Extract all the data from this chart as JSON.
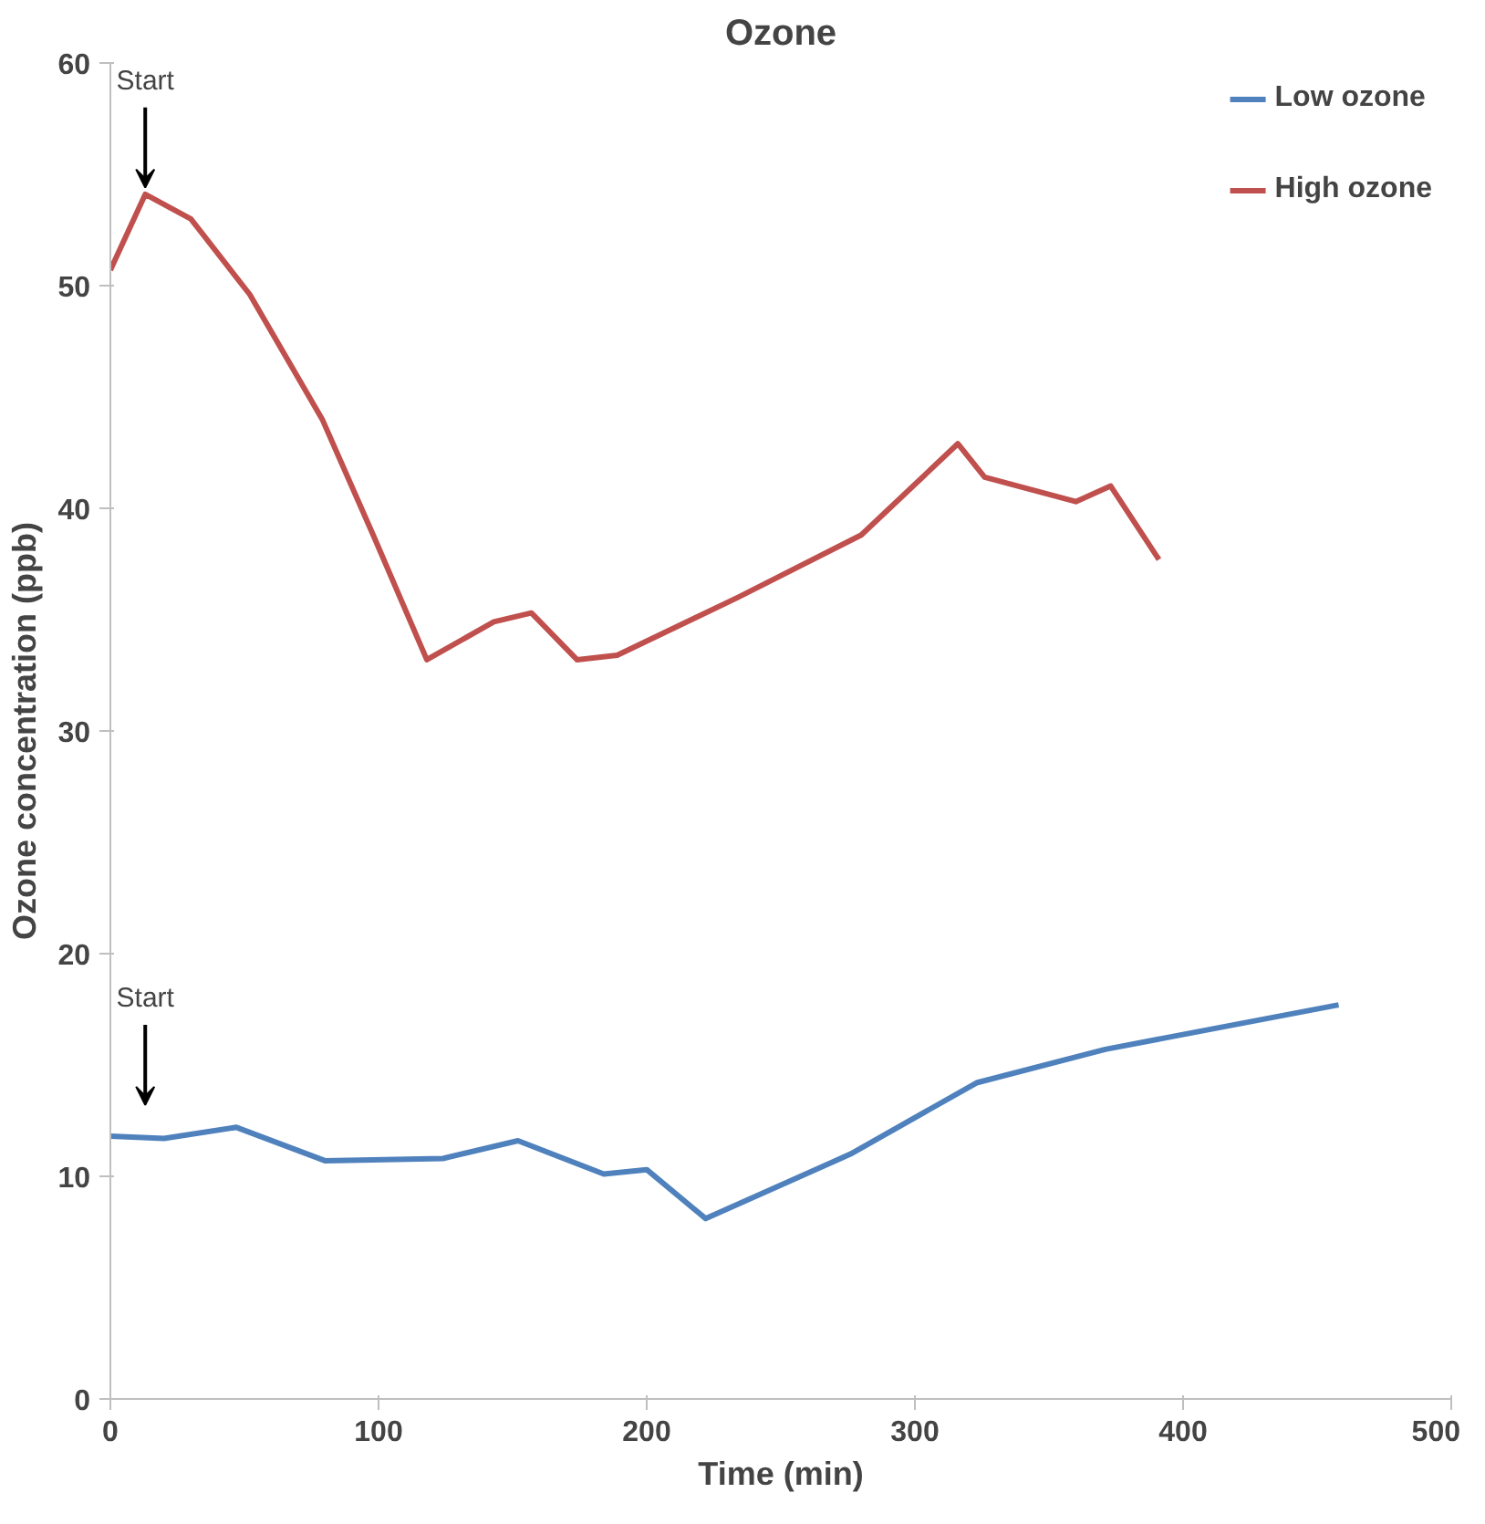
{
  "chart_data": {
    "type": "line",
    "title": "Ozone",
    "xlabel": "Time (min)",
    "ylabel": "Ozone concentration (ppb)",
    "xlim": [
      0,
      500
    ],
    "ylim": [
      0,
      60
    ],
    "xticks": [
      0,
      100,
      200,
      300,
      400,
      500
    ],
    "yticks": [
      0,
      10,
      20,
      30,
      40,
      50,
      60
    ],
    "grid": false,
    "legend": "top right",
    "series": [
      {
        "name": "Low ozone",
        "color": "#4f81bd",
        "x": [
          0,
          20,
          47,
          80,
          124,
          152,
          184,
          200,
          222,
          276,
          323,
          371,
          458
        ],
        "values": [
          11.8,
          11.7,
          12.2,
          10.7,
          10.8,
          11.6,
          10.1,
          10.3,
          8.1,
          11,
          14.2,
          15.7,
          17.7
        ]
      },
      {
        "name": "High ozone",
        "color": "#c0504d",
        "x": [
          0,
          13,
          30,
          52,
          79,
          98,
          118,
          143,
          157,
          174,
          189,
          234,
          280,
          316,
          326,
          360,
          373,
          391
        ],
        "values": [
          50.7,
          54.1,
          53,
          49.6,
          44,
          38.8,
          33.2,
          34.9,
          35.3,
          33.2,
          33.4,
          36,
          38.8,
          42.9,
          41.4,
          40.3,
          41,
          37.7
        ]
      }
    ],
    "annotations": [
      {
        "text": "Start",
        "x": 13,
        "y": 54.1
      },
      "Start"
    ]
  }
}
